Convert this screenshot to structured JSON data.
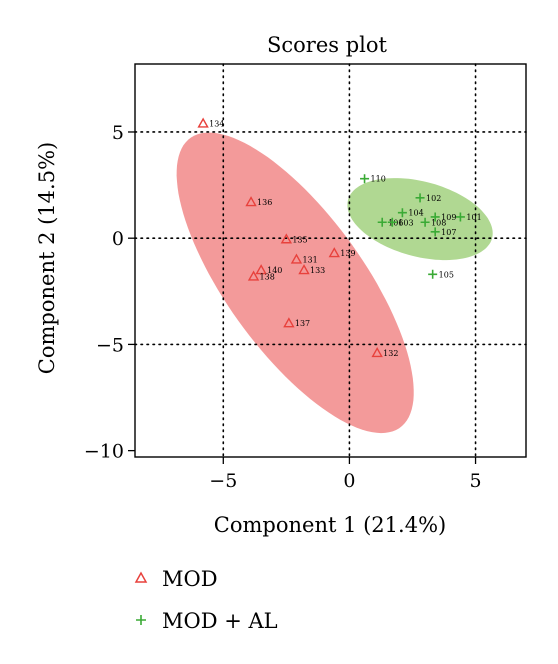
{
  "chart_data": {
    "type": "scatter",
    "title": "Scores plot",
    "xlabel": "Component 1 (21.4%)",
    "ylabel": "Component 2 (14.5%)",
    "xlim": [
      -8.5,
      7
    ],
    "ylim": [
      -10.3,
      8.2
    ],
    "xticks": [
      -5,
      0,
      5
    ],
    "yticks": [
      5,
      0,
      -5,
      -10
    ],
    "xtick_labels": [
      "−5",
      "0",
      "5"
    ],
    "ytick_labels": [
      "5",
      "0",
      "−5",
      "−10"
    ],
    "grid": "dotted at -5, 0, 5",
    "legend_position": "bottom-left",
    "series": [
      {
        "name": "MOD",
        "marker": "triangle",
        "color": "#e8413c",
        "ellipse_color": "#f08484",
        "points": [
          {
            "label": "134",
            "x": -5.8,
            "y": 5.4
          },
          {
            "label": "136",
            "x": -3.9,
            "y": 1.7
          },
          {
            "label": "135",
            "x": -2.5,
            "y": -0.05
          },
          {
            "label": "131",
            "x": -2.1,
            "y": -1.0
          },
          {
            "label": "139",
            "x": -0.6,
            "y": -0.7
          },
          {
            "label": "140",
            "x": -3.5,
            "y": -1.5
          },
          {
            "label": "133",
            "x": -1.8,
            "y": -1.5
          },
          {
            "label": "138",
            "x": -3.8,
            "y": -1.8
          },
          {
            "label": "137",
            "x": -2.4,
            "y": -4.0
          },
          {
            "label": "132",
            "x": 1.1,
            "y": -5.4
          }
        ]
      },
      {
        "name": "MOD + AL",
        "marker": "plus",
        "color": "#3aaa35",
        "ellipse_color": "#9fd07a",
        "points": [
          {
            "label": "110",
            "x": 0.6,
            "y": 2.8
          },
          {
            "label": "102",
            "x": 2.8,
            "y": 1.9
          },
          {
            "label": "104",
            "x": 2.1,
            "y": 1.2
          },
          {
            "label": "109",
            "x": 3.4,
            "y": 1.0
          },
          {
            "label": "101",
            "x": 4.4,
            "y": 1.0
          },
          {
            "label": "106",
            "x": 1.3,
            "y": 0.75
          },
          {
            "label": "103",
            "x": 1.7,
            "y": 0.75
          },
          {
            "label": "108",
            "x": 3.0,
            "y": 0.75
          },
          {
            "label": "107",
            "x": 3.4,
            "y": 0.3
          },
          {
            "label": "105",
            "x": 3.3,
            "y": -1.7
          }
        ]
      }
    ],
    "ellipses": [
      {
        "series": "MOD",
        "cx": -2.15,
        "cy": -2.1,
        "rx": 8.0,
        "ry": 2.85,
        "angle_deg": -60
      },
      {
        "series": "MOD + AL",
        "cx": 2.8,
        "cy": 0.9,
        "rx": 3.0,
        "ry": 1.74,
        "angle_deg": -20
      }
    ]
  }
}
